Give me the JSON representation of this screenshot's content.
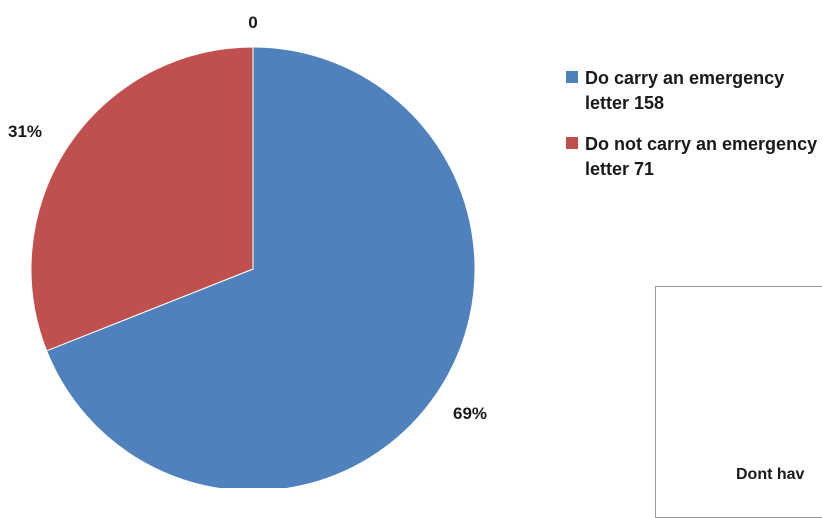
{
  "chart_data": {
    "type": "pie",
    "slices": [
      {
        "label": "Do carry an emergency letter 158",
        "value": 158,
        "percent_label": "69%",
        "color": "#4f81bd"
      },
      {
        "label": "Do not carry an emergency letter 71",
        "value": 71,
        "percent_label": "31%",
        "color": "#c0504d"
      }
    ],
    "extra_label": "0",
    "legend_position": "right"
  },
  "inset": {
    "partial_text": "Dont hav"
  }
}
